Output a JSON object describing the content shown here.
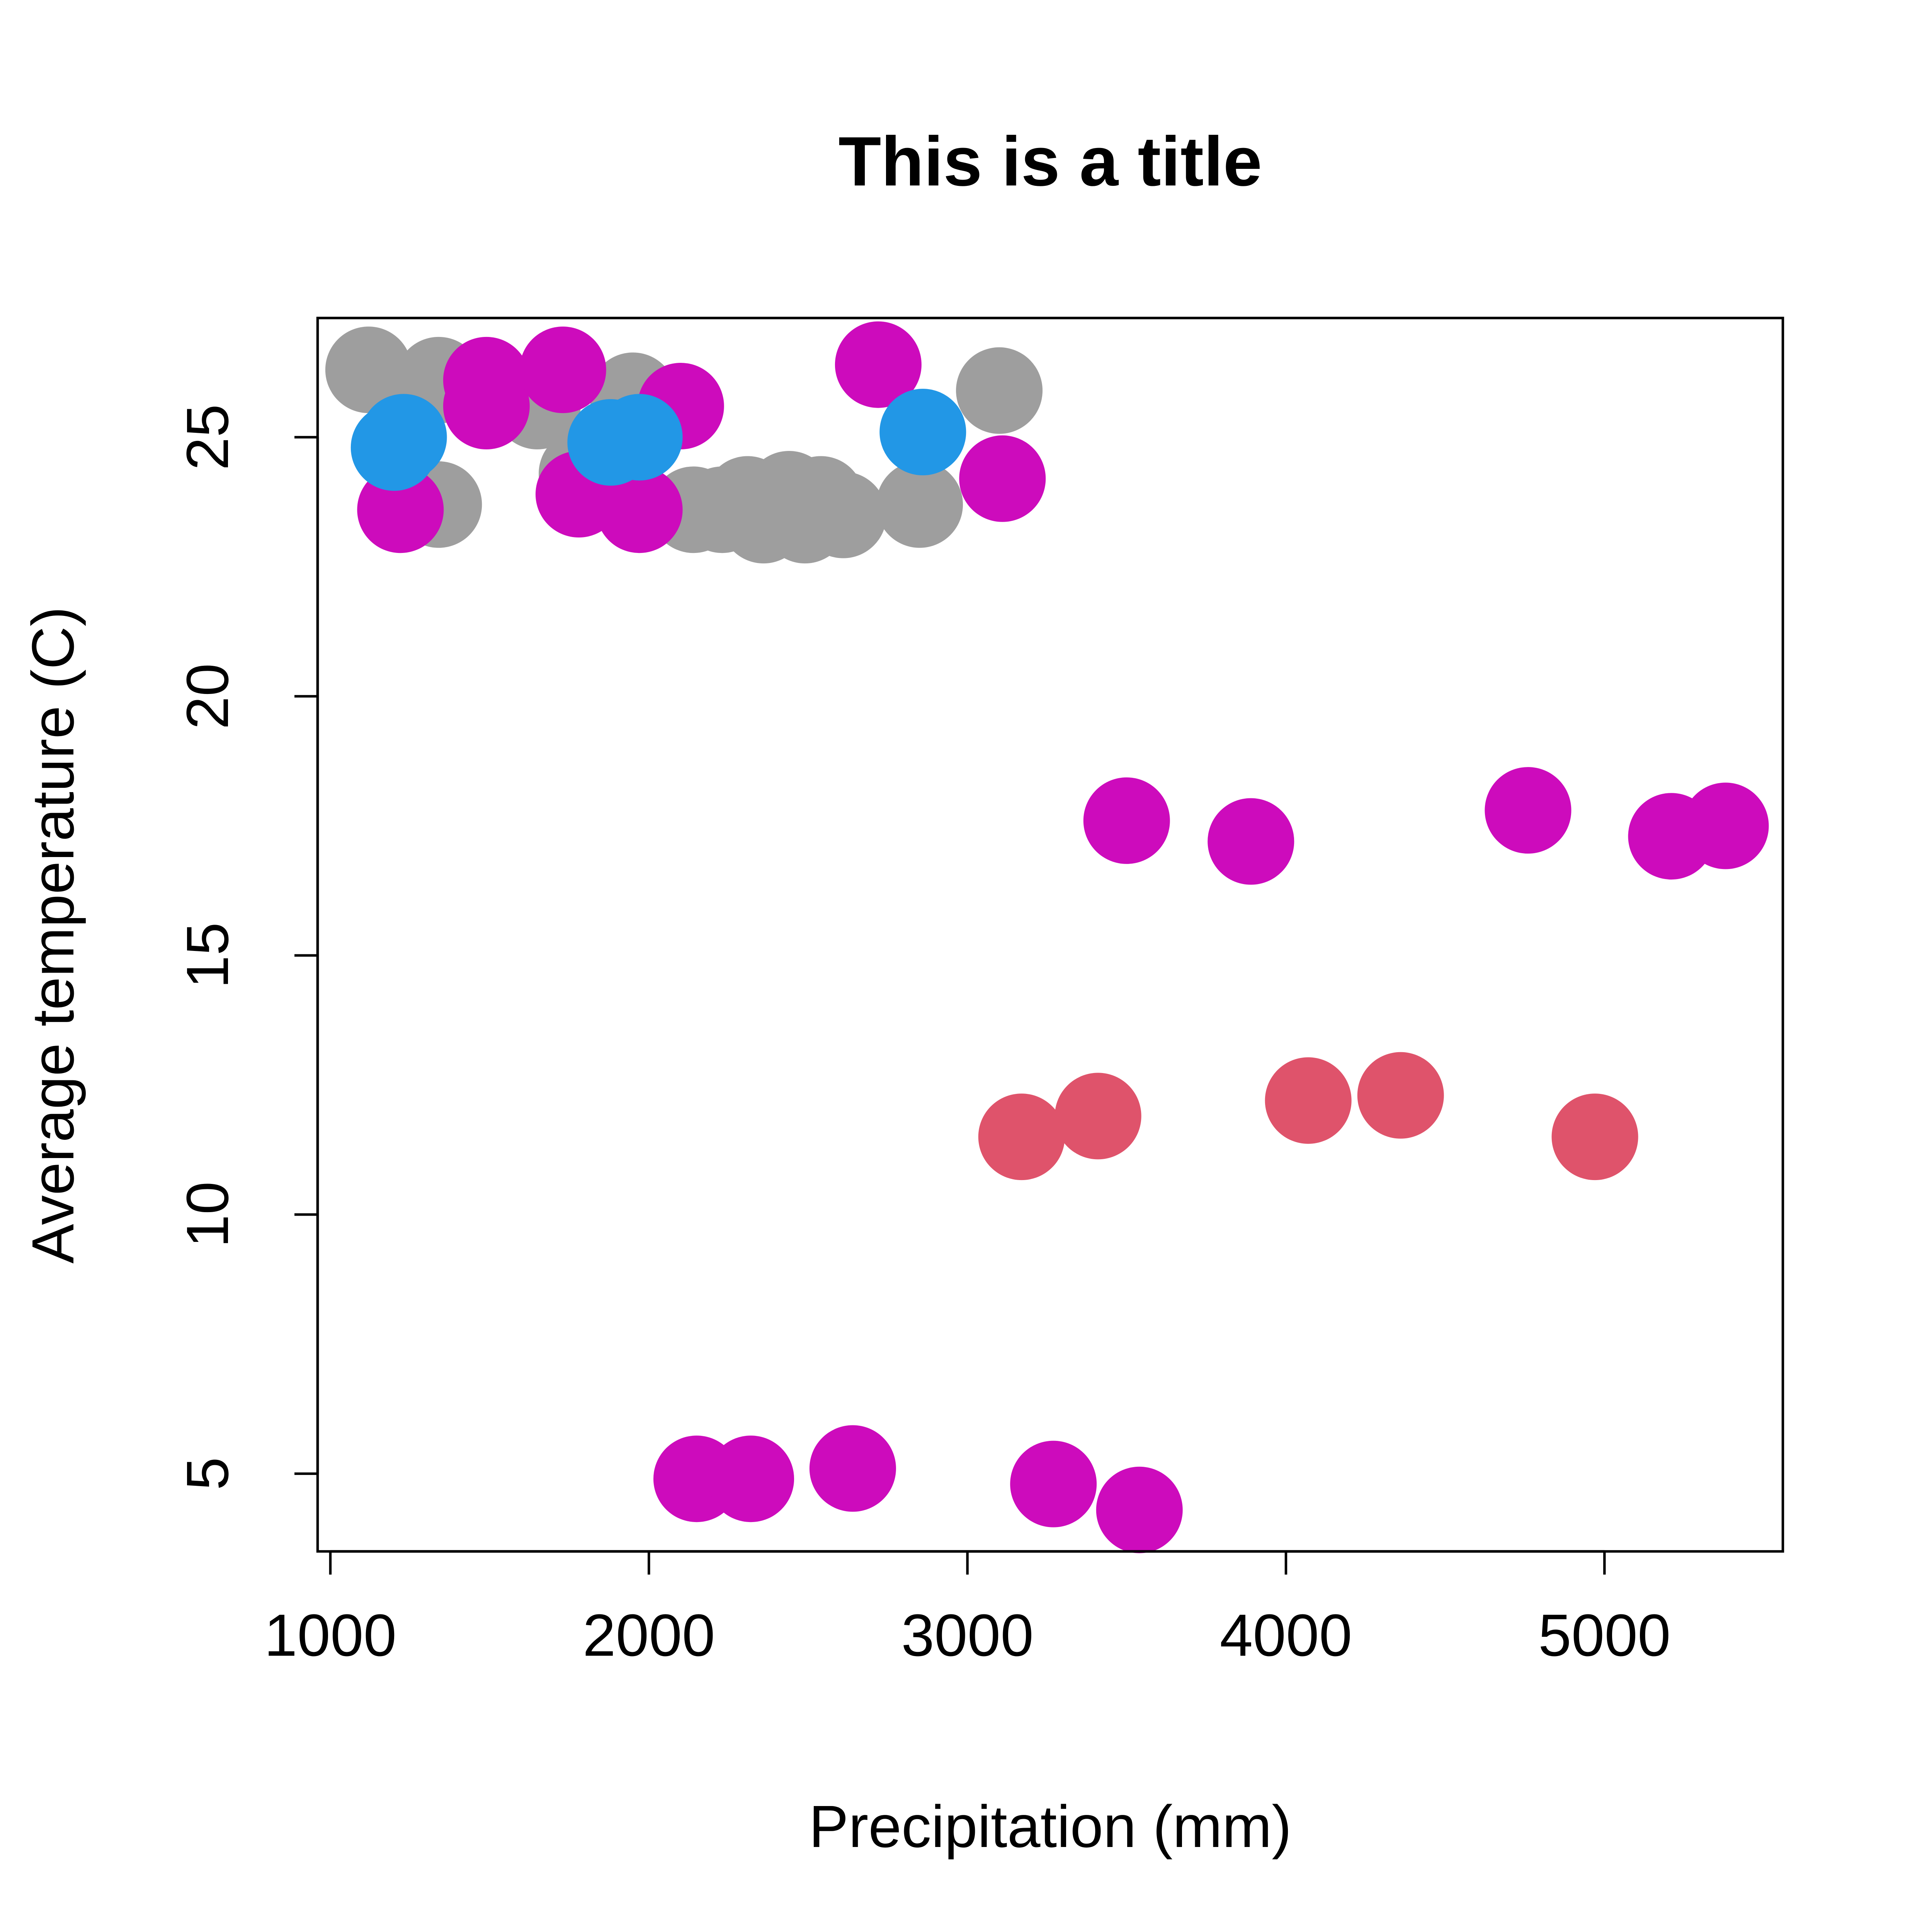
{
  "chart_data": {
    "type": "scatter",
    "title": "This is a title",
    "xlabel": "Precipitation (mm)",
    "ylabel": "Average temperature (C)",
    "xlim": [
      960,
      5560
    ],
    "ylim": [
      3.5,
      27.3
    ],
    "x_ticks": [
      1000,
      2000,
      3000,
      4000,
      5000
    ],
    "y_ticks": [
      5,
      10,
      15,
      20,
      25
    ],
    "grid": false,
    "legend": "none",
    "series": [
      {
        "color": "#9E9E9E",
        "points": [
          {
            "x": 1120,
            "y": 26.3
          },
          {
            "x": 1340,
            "y": 26.1
          },
          {
            "x": 1650,
            "y": 25.6
          },
          {
            "x": 1340,
            "y": 23.7
          },
          {
            "x": 1790,
            "y": 24.3
          },
          {
            "x": 1890,
            "y": 24.2
          },
          {
            "x": 1950,
            "y": 25.8
          },
          {
            "x": 2140,
            "y": 23.6
          },
          {
            "x": 2230,
            "y": 23.6
          },
          {
            "x": 2310,
            "y": 23.8
          },
          {
            "x": 2360,
            "y": 23.4
          },
          {
            "x": 2440,
            "y": 23.9
          },
          {
            "x": 2490,
            "y": 23.4
          },
          {
            "x": 2540,
            "y": 23.8
          },
          {
            "x": 2610,
            "y": 23.5
          },
          {
            "x": 2850,
            "y": 23.7
          },
          {
            "x": 3100,
            "y": 25.9
          }
        ]
      },
      {
        "color": "#CD0BBC",
        "points": [
          {
            "x": 1220,
            "y": 23.6
          },
          {
            "x": 1490,
            "y": 26.1
          },
          {
            "x": 1490,
            "y": 25.6
          },
          {
            "x": 1730,
            "y": 26.3
          },
          {
            "x": 1780,
            "y": 23.9
          },
          {
            "x": 1970,
            "y": 23.6
          },
          {
            "x": 2100,
            "y": 25.6
          },
          {
            "x": 2720,
            "y": 26.4
          },
          {
            "x": 3110,
            "y": 24.2
          },
          {
            "x": 3500,
            "y": 17.6
          },
          {
            "x": 3890,
            "y": 17.2
          },
          {
            "x": 4760,
            "y": 17.8
          },
          {
            "x": 5210,
            "y": 17.3
          },
          {
            "x": 5380,
            "y": 17.5
          },
          {
            "x": 2150,
            "y": 4.9
          },
          {
            "x": 2320,
            "y": 4.9
          },
          {
            "x": 2640,
            "y": 5.1
          },
          {
            "x": 3270,
            "y": 4.8
          },
          {
            "x": 3540,
            "y": 4.3
          }
        ]
      },
      {
        "color": "#2297E6",
        "points": [
          {
            "x": 1200,
            "y": 24.8
          },
          {
            "x": 1230,
            "y": 25.0
          },
          {
            "x": 1880,
            "y": 24.9
          },
          {
            "x": 1970,
            "y": 25.0
          },
          {
            "x": 2860,
            "y": 25.1
          }
        ]
      },
      {
        "color": "#DF536B",
        "points": [
          {
            "x": 3170,
            "y": 11.5
          },
          {
            "x": 3410,
            "y": 11.9
          },
          {
            "x": 4070,
            "y": 12.2
          },
          {
            "x": 4360,
            "y": 12.3
          },
          {
            "x": 4970,
            "y": 11.5
          }
        ]
      }
    ]
  }
}
